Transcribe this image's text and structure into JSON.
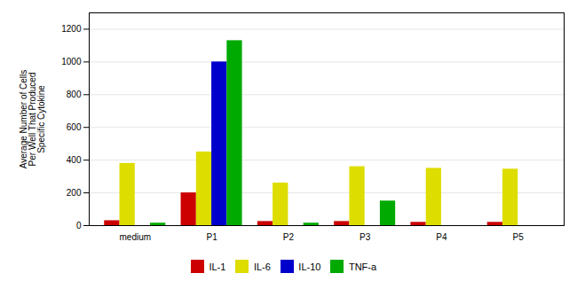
{
  "chart_data": {
    "type": "bar",
    "ylabel": "Average Number of Cells\nPer Well That Produced\nSpecific Cytokine",
    "categories": [
      "medium",
      "P1",
      "P2",
      "P3",
      "P4",
      "P5"
    ],
    "series": [
      {
        "name": "IL-1",
        "color": "#cc0000",
        "values": [
          30,
          200,
          25,
          25,
          20,
          20
        ]
      },
      {
        "name": "IL-6",
        "color": "#dddd00",
        "values": [
          380,
          450,
          260,
          360,
          350,
          345
        ]
      },
      {
        "name": "IL-10",
        "color": "#0000cc",
        "values": [
          0,
          1000,
          0,
          0,
          0,
          0
        ]
      },
      {
        "name": "TNF-a",
        "color": "#00aa00",
        "values": [
          15,
          1130,
          15,
          150,
          0,
          0
        ]
      }
    ],
    "ylim": [
      0,
      1300
    ],
    "yticks": [
      0,
      200,
      400,
      600,
      800,
      1000,
      1200
    ],
    "grid": true,
    "legend": "bottom"
  }
}
